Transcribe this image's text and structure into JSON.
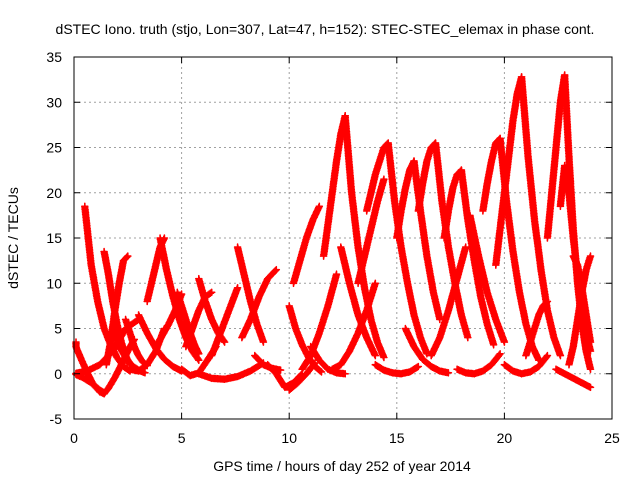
{
  "chart_data": {
    "type": "scatter",
    "title": "dSTEC Iono. truth (stjo, Lon=307, Lat=47, h=152): STEC-STEC_elemax in phase cont.",
    "xlabel": "GPS time / hours of day 252 of year 2014",
    "ylabel": "dSTEC  / TECUs",
    "xlim": [
      0,
      25
    ],
    "ylim": [
      -5,
      35
    ],
    "xticks": [
      0,
      5,
      10,
      15,
      20,
      25
    ],
    "yticks": [
      -5,
      0,
      5,
      10,
      15,
      20,
      25,
      30,
      35
    ],
    "grid": true,
    "legend": "none",
    "marker": "plus",
    "series_color": "#ff0000",
    "series": [
      {
        "x": [
          0.0,
          0.3,
          0.6,
          0.9,
          1.2,
          1.4
        ],
        "y": [
          3.5,
          1.8,
          0.2,
          -1.2,
          -2.0,
          -2.2
        ]
      },
      {
        "x": [
          0.0,
          0.4,
          0.8,
          1.2,
          1.4
        ],
        "y": [
          0.0,
          -0.4,
          -1.0,
          -1.8,
          -2.1
        ]
      },
      {
        "x": [
          1.4,
          1.6,
          1.9,
          2.2,
          2.5,
          2.8
        ],
        "y": [
          -2.2,
          -1.6,
          -0.4,
          1.0,
          2.5,
          3.8
        ]
      },
      {
        "x": [
          0.5,
          0.8,
          1.1,
          1.4,
          1.7,
          2.0,
          2.3,
          2.6
        ],
        "y": [
          18.5,
          12.0,
          8.0,
          5.0,
          3.2,
          1.8,
          0.8,
          0.3
        ]
      },
      {
        "x": [
          0.0,
          0.6,
          1.2,
          1.8,
          2.4,
          3.0
        ],
        "y": [
          0.0,
          0.3,
          1.0,
          2.5,
          5.0,
          6.0
        ]
      },
      {
        "x": [
          1.4,
          1.6,
          1.8,
          2.0,
          2.2,
          2.4,
          2.6
        ],
        "y": [
          13.5,
          11.0,
          8.0,
          5.5,
          3.5,
          2.0,
          1.0
        ]
      },
      {
        "x": [
          1.5,
          1.7,
          1.9,
          2.1,
          2.3,
          2.5
        ],
        "y": [
          1.0,
          3.5,
          7.0,
          10.0,
          12.5,
          13.0
        ]
      },
      {
        "x": [
          1.8,
          2.1,
          2.4,
          2.7,
          3.0,
          3.3
        ],
        "y": [
          5.0,
          3.0,
          1.8,
          0.9,
          0.4,
          0.1
        ]
      },
      {
        "x": [
          2.4,
          2.6,
          2.8,
          3.0,
          3.2,
          3.4
        ],
        "y": [
          6.0,
          4.5,
          3.0,
          2.0,
          1.3,
          0.9
        ]
      },
      {
        "x": [
          2.6,
          3.0,
          3.4,
          3.8,
          4.2
        ],
        "y": [
          0.5,
          0.3,
          1.0,
          2.5,
          5.0
        ]
      },
      {
        "x": [
          3.0,
          3.4,
          3.8,
          4.2,
          4.6,
          5.0
        ],
        "y": [
          6.5,
          4.5,
          2.8,
          1.6,
          0.8,
          0.3
        ]
      },
      {
        "x": [
          3.4,
          3.6,
          3.8,
          4.0,
          4.2
        ],
        "y": [
          8.0,
          10.0,
          12.0,
          14.0,
          15.0
        ]
      },
      {
        "x": [
          4.0,
          4.3,
          4.6,
          4.9,
          5.2,
          5.5,
          5.8
        ],
        "y": [
          15.0,
          11.5,
          8.5,
          6.0,
          4.0,
          2.5,
          1.5
        ]
      },
      {
        "x": [
          3.8,
          4.1,
          4.4,
          4.7,
          5.0
        ],
        "y": [
          3.0,
          4.2,
          5.5,
          7.0,
          8.8
        ]
      },
      {
        "x": [
          4.8,
          5.0,
          5.2,
          5.4,
          5.6,
          5.8
        ],
        "y": [
          9.0,
          7.5,
          6.0,
          4.5,
          3.2,
          2.2
        ]
      },
      {
        "x": [
          5.0,
          5.4,
          5.8,
          6.2,
          6.6
        ],
        "y": [
          0.5,
          -0.2,
          0.1,
          1.5,
          3.0
        ]
      },
      {
        "x": [
          5.2,
          5.5,
          5.8,
          6.1,
          6.4
        ],
        "y": [
          3.0,
          5.0,
          7.0,
          8.5,
          9.0
        ]
      },
      {
        "x": [
          5.8,
          6.1,
          6.4,
          6.7,
          7.0
        ],
        "y": [
          10.5,
          8.0,
          6.0,
          4.5,
          3.5
        ]
      },
      {
        "x": [
          6.4,
          6.8,
          7.2,
          7.6
        ],
        "y": [
          2.0,
          4.5,
          7.0,
          9.5
        ]
      },
      {
        "x": [
          5.8,
          6.4,
          7.0,
          7.6,
          8.2,
          8.8
        ],
        "y": [
          0.0,
          -0.5,
          -0.6,
          -0.3,
          0.3,
          1.2
        ]
      },
      {
        "x": [
          7.6,
          7.9,
          8.2,
          8.5,
          8.8
        ],
        "y": [
          14.0,
          11.0,
          8.0,
          5.5,
          3.5
        ]
      },
      {
        "x": [
          7.8,
          8.2,
          8.6,
          9.0,
          9.4
        ],
        "y": [
          4.0,
          6.0,
          8.5,
          10.5,
          11.5
        ]
      },
      {
        "x": [
          8.4,
          8.8,
          9.2,
          9.6
        ],
        "y": [
          2.0,
          1.0,
          0.6,
          0.4
        ]
      },
      {
        "x": [
          9.0,
          9.4,
          9.8,
          10.2,
          10.6
        ],
        "y": [
          1.0,
          0.0,
          -1.5,
          -1.0,
          0.0
        ]
      },
      {
        "x": [
          10.0,
          10.3,
          10.6,
          10.9,
          11.2,
          11.5
        ],
        "y": [
          7.5,
          5.0,
          3.2,
          1.8,
          0.8,
          0.2
        ]
      },
      {
        "x": [
          10.0,
          10.4,
          10.8,
          11.2
        ],
        "y": [
          -1.8,
          -1.0,
          0.0,
          1.2
        ]
      },
      {
        "x": [
          10.2,
          10.5,
          10.8,
          11.1,
          11.4
        ],
        "y": [
          10.0,
          12.5,
          15.0,
          17.0,
          18.5
        ]
      },
      {
        "x": [
          10.6,
          11.0,
          11.4,
          11.8,
          12.2
        ],
        "y": [
          0.5,
          2.0,
          4.5,
          7.5,
          11.0
        ]
      },
      {
        "x": [
          11.0,
          11.4,
          11.8,
          12.2,
          12.6
        ],
        "y": [
          3.0,
          1.5,
          0.5,
          0.1,
          0.0
        ]
      },
      {
        "x": [
          11.6,
          11.8,
          12.0,
          12.2,
          12.4,
          12.6
        ],
        "y": [
          13.0,
          16.5,
          20.0,
          23.5,
          26.5,
          28.5
        ]
      },
      {
        "x": [
          12.6,
          12.9,
          13.2,
          13.5,
          13.8,
          14.1,
          14.4
        ],
        "y": [
          28.5,
          20.0,
          14.0,
          9.5,
          6.0,
          3.5,
          1.8
        ]
      },
      {
        "x": [
          12.4,
          12.8,
          13.2,
          13.6,
          14.0
        ],
        "y": [
          14.0,
          10.0,
          6.5,
          4.0,
          2.0
        ]
      },
      {
        "x": [
          12.0,
          12.4,
          12.8,
          13.2,
          13.6,
          14.0
        ],
        "y": [
          0.5,
          1.0,
          2.5,
          4.5,
          7.0,
          10.0
        ]
      },
      {
        "x": [
          13.2,
          13.5,
          13.8,
          14.1,
          14.4
        ],
        "y": [
          10.0,
          13.0,
          16.0,
          19.0,
          21.5
        ]
      },
      {
        "x": [
          13.6,
          13.8,
          14.0,
          14.2,
          14.4,
          14.6
        ],
        "y": [
          18.0,
          20.0,
          22.0,
          23.5,
          25.0,
          25.5
        ]
      },
      {
        "x": [
          14.6,
          14.9,
          15.2,
          15.5,
          15.8,
          16.1,
          16.4
        ],
        "y": [
          25.5,
          19.0,
          14.0,
          10.0,
          6.5,
          4.0,
          2.2
        ]
      },
      {
        "x": [
          14.0,
          14.4,
          14.8,
          15.2,
          15.6,
          16.0
        ],
        "y": [
          1.0,
          0.4,
          0.1,
          0.0,
          0.2,
          0.8
        ]
      },
      {
        "x": [
          15.0,
          15.2,
          15.4,
          15.6,
          15.8
        ],
        "y": [
          15.0,
          18.0,
          20.5,
          22.5,
          23.5
        ]
      },
      {
        "x": [
          15.8,
          16.1,
          16.4,
          16.7,
          17.0
        ],
        "y": [
          23.5,
          18.0,
          13.0,
          9.0,
          6.0
        ]
      },
      {
        "x": [
          15.4,
          15.8,
          16.2,
          16.6,
          17.0,
          17.4
        ],
        "y": [
          5.0,
          3.0,
          1.6,
          0.8,
          0.3,
          0.1
        ]
      },
      {
        "x": [
          16.0,
          16.2,
          16.4,
          16.6,
          16.8
        ],
        "y": [
          18.0,
          21.0,
          23.5,
          25.0,
          25.5
        ]
      },
      {
        "x": [
          16.8,
          17.1,
          17.4,
          17.7,
          18.0,
          18.3
        ],
        "y": [
          25.5,
          19.0,
          14.0,
          10.0,
          6.5,
          4.0
        ]
      },
      {
        "x": [
          16.6,
          17.0,
          17.4,
          17.8,
          18.2
        ],
        "y": [
          2.0,
          4.0,
          7.0,
          10.5,
          14.0
        ]
      },
      {
        "x": [
          17.2,
          17.4,
          17.6,
          17.8,
          18.0
        ],
        "y": [
          15.0,
          18.0,
          20.5,
          22.0,
          22.5
        ]
      },
      {
        "x": [
          18.0,
          18.3,
          18.6,
          18.9,
          19.2,
          19.5
        ],
        "y": [
          22.5,
          17.0,
          12.5,
          8.5,
          5.5,
          3.2
        ]
      },
      {
        "x": [
          18.4,
          18.8,
          19.2,
          19.6,
          20.0
        ],
        "y": [
          17.5,
          13.0,
          9.0,
          6.0,
          3.5
        ]
      },
      {
        "x": [
          17.8,
          18.2,
          18.6,
          19.0,
          19.4,
          19.8
        ],
        "y": [
          0.5,
          0.1,
          0.0,
          0.3,
          1.0,
          2.2
        ]
      },
      {
        "x": [
          19.0,
          19.2,
          19.4,
          19.6,
          19.8
        ],
        "y": [
          18.0,
          21.0,
          23.5,
          25.5,
          26.0
        ]
      },
      {
        "x": [
          19.8,
          20.1,
          20.4,
          20.7,
          21.0,
          21.3,
          21.6
        ],
        "y": [
          26.0,
          19.0,
          13.5,
          9.0,
          5.5,
          3.0,
          1.5
        ]
      },
      {
        "x": [
          19.6,
          19.8,
          20.0,
          20.2,
          20.4,
          20.6,
          20.8
        ],
        "y": [
          12.0,
          16.0,
          20.0,
          24.0,
          28.0,
          31.0,
          32.8
        ]
      },
      {
        "x": [
          20.8,
          21.1,
          21.4,
          21.7,
          22.0,
          22.3,
          22.6
        ],
        "y": [
          32.8,
          24.0,
          17.0,
          11.5,
          7.0,
          4.0,
          2.0
        ]
      },
      {
        "x": [
          20.0,
          20.4,
          20.8,
          21.2,
          21.6,
          22.0
        ],
        "y": [
          1.0,
          0.3,
          0.0,
          0.2,
          0.8,
          2.0
        ]
      },
      {
        "x": [
          21.0,
          21.2,
          21.4,
          21.6,
          21.8,
          22.0
        ],
        "y": [
          2.0,
          3.5,
          5.0,
          6.5,
          7.5,
          8.0
        ]
      },
      {
        "x": [
          22.0,
          22.2,
          22.4,
          22.6,
          22.8
        ],
        "y": [
          15.0,
          20.0,
          25.0,
          30.0,
          33.0
        ]
      },
      {
        "x": [
          22.8,
          23.0,
          23.2,
          23.4,
          23.6,
          23.8,
          24.0
        ],
        "y": [
          33.0,
          24.0,
          16.0,
          10.0,
          5.5,
          2.5,
          0.5
        ]
      },
      {
        "x": [
          22.6,
          22.8,
          23.0,
          23.2,
          23.4,
          23.6,
          23.8,
          24.0
        ],
        "y": [
          18.5,
          23.0,
          20.0,
          15.0,
          11.0,
          7.5,
          4.5,
          2.5
        ]
      },
      {
        "x": [
          23.0,
          23.2,
          23.4,
          23.6,
          23.8,
          24.0
        ],
        "y": [
          1.0,
          3.0,
          6.0,
          9.0,
          11.5,
          13.0
        ]
      },
      {
        "x": [
          23.2,
          23.4,
          23.6,
          23.8,
          24.0
        ],
        "y": [
          13.0,
          12.0,
          9.5,
          6.5,
          3.5
        ]
      },
      {
        "x": [
          22.4,
          22.8,
          23.2,
          23.6,
          24.0
        ],
        "y": [
          0.5,
          0.0,
          -0.5,
          -1.0,
          -1.5
        ]
      }
    ]
  }
}
